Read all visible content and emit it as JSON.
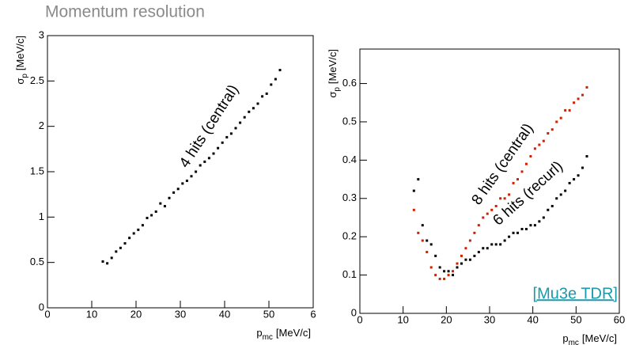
{
  "slide_title": "Momentum resolution",
  "source_link": "[Mu3e TDR]",
  "chart_data": [
    {
      "type": "scatter",
      "xlabel": {
        "symbol": "p",
        "subscript": "mc",
        "unit": "[MeV/c]"
      },
      "ylabel": {
        "symbol": "σ",
        "subscript": "p",
        "unit": "[MeV/c]"
      },
      "xlim": [
        0,
        60
      ],
      "xticks": [
        0,
        10,
        20,
        30,
        40,
        50,
        {
          "value": 60,
          "label": "6"
        }
      ],
      "ylim": [
        0,
        3
      ],
      "yticks": [
        0,
        0.5,
        1,
        1.5,
        2,
        2.5,
        3
      ],
      "x": [
        12.5,
        13.5,
        14.5,
        15.5,
        16.5,
        17.5,
        18.5,
        19.5,
        20.5,
        21.5,
        22.5,
        23.5,
        24.5,
        25.5,
        26.5,
        27.5,
        28.5,
        29.5,
        30.5,
        31.5,
        32.5,
        33.5,
        34.5,
        35.5,
        36.5,
        37.5,
        38.5,
        39.5,
        40.5,
        41.5,
        42.5,
        43.5,
        44.5,
        45.5,
        46.5,
        47.5,
        48.5,
        49.5,
        50.5,
        51.5,
        52.5
      ],
      "series": [
        {
          "color": "#000000",
          "values": [
            0.51,
            0.49,
            0.55,
            0.62,
            0.66,
            0.71,
            0.77,
            0.82,
            0.86,
            0.91,
            0.99,
            1.02,
            1.06,
            1.15,
            1.12,
            1.21,
            1.27,
            1.31,
            1.37,
            1.4,
            1.45,
            1.5,
            1.57,
            1.61,
            1.65,
            1.7,
            1.76,
            1.82,
            1.88,
            1.92,
            1.98,
            2.04,
            2.1,
            2.16,
            2.2,
            2.25,
            2.33,
            2.36,
            2.46,
            2.52,
            2.62
          ]
        }
      ],
      "annotations": [
        "4 hits (central)"
      ]
    },
    {
      "type": "scatter",
      "xlabel": {
        "symbol": "p",
        "subscript": "mc",
        "unit": "[MeV/c]"
      },
      "ylabel": {
        "symbol": "σ",
        "subscript": "p",
        "unit": "[MeV/c]"
      },
      "xlim": [
        0,
        60
      ],
      "xticks": [
        0,
        10,
        20,
        30,
        40,
        50,
        60
      ],
      "ylim": [
        0,
        0.69
      ],
      "yticks": [
        0,
        0.1,
        0.2,
        0.3,
        0.4,
        0.5,
        0.6
      ],
      "x": [
        12.5,
        13.5,
        14.5,
        15.5,
        16.5,
        17.5,
        18.5,
        19.5,
        20.5,
        21.5,
        22.5,
        23.5,
        24.5,
        25.5,
        26.5,
        27.5,
        28.5,
        29.5,
        30.5,
        31.5,
        32.5,
        33.5,
        34.5,
        35.5,
        36.5,
        37.5,
        38.5,
        39.5,
        40.5,
        41.5,
        42.5,
        43.5,
        44.5,
        45.5,
        46.5,
        47.5,
        48.5,
        49.5,
        50.5,
        51.5,
        52.5
      ],
      "series": [
        {
          "color": "#cc2200",
          "values": [
            0.27,
            0.21,
            0.19,
            0.16,
            0.12,
            0.1,
            0.09,
            0.09,
            0.1,
            0.11,
            0.13,
            0.15,
            0.17,
            0.19,
            0.21,
            0.23,
            0.25,
            0.26,
            0.27,
            0.28,
            0.3,
            0.3,
            0.31,
            0.34,
            0.35,
            0.37,
            0.39,
            0.41,
            0.43,
            0.44,
            0.45,
            0.47,
            0.48,
            0.5,
            0.51,
            0.53,
            0.53,
            0.55,
            0.56,
            0.57,
            0.59
          ]
        },
        {
          "color": "#000000",
          "values": [
            0.32,
            0.35,
            0.23,
            0.19,
            0.18,
            0.15,
            0.12,
            0.11,
            0.11,
            0.1,
            0.12,
            0.13,
            0.14,
            0.14,
            0.15,
            0.16,
            0.17,
            0.17,
            0.18,
            0.18,
            0.18,
            0.19,
            0.2,
            0.21,
            0.21,
            0.22,
            0.22,
            0.23,
            0.23,
            0.24,
            0.25,
            0.27,
            0.28,
            0.3,
            0.31,
            0.32,
            0.34,
            0.35,
            0.36,
            0.38,
            0.41
          ]
        }
      ],
      "annotations": [
        "8 hits (central)",
        "6 hits (recurl)"
      ]
    }
  ]
}
